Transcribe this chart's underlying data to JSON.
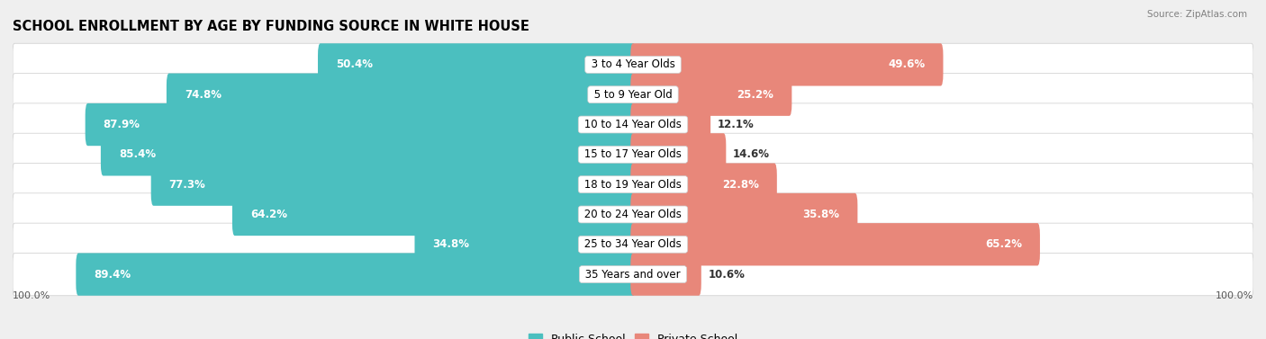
{
  "title": "SCHOOL ENROLLMENT BY AGE BY FUNDING SOURCE IN WHITE HOUSE",
  "source": "Source: ZipAtlas.com",
  "categories": [
    "3 to 4 Year Olds",
    "5 to 9 Year Old",
    "10 to 14 Year Olds",
    "15 to 17 Year Olds",
    "18 to 19 Year Olds",
    "20 to 24 Year Olds",
    "25 to 34 Year Olds",
    "35 Years and over"
  ],
  "public_values": [
    50.4,
    74.8,
    87.9,
    85.4,
    77.3,
    64.2,
    34.8,
    89.4
  ],
  "private_values": [
    49.6,
    25.2,
    12.1,
    14.6,
    22.8,
    35.8,
    65.2,
    10.6
  ],
  "public_color": "#4bbfbf",
  "private_color": "#e8877a",
  "bg_color": "#efefef",
  "title_fontsize": 10.5,
  "value_fontsize": 8.5,
  "label_fontsize": 8.5,
  "legend_fontsize": 9,
  "axis_max": 100
}
